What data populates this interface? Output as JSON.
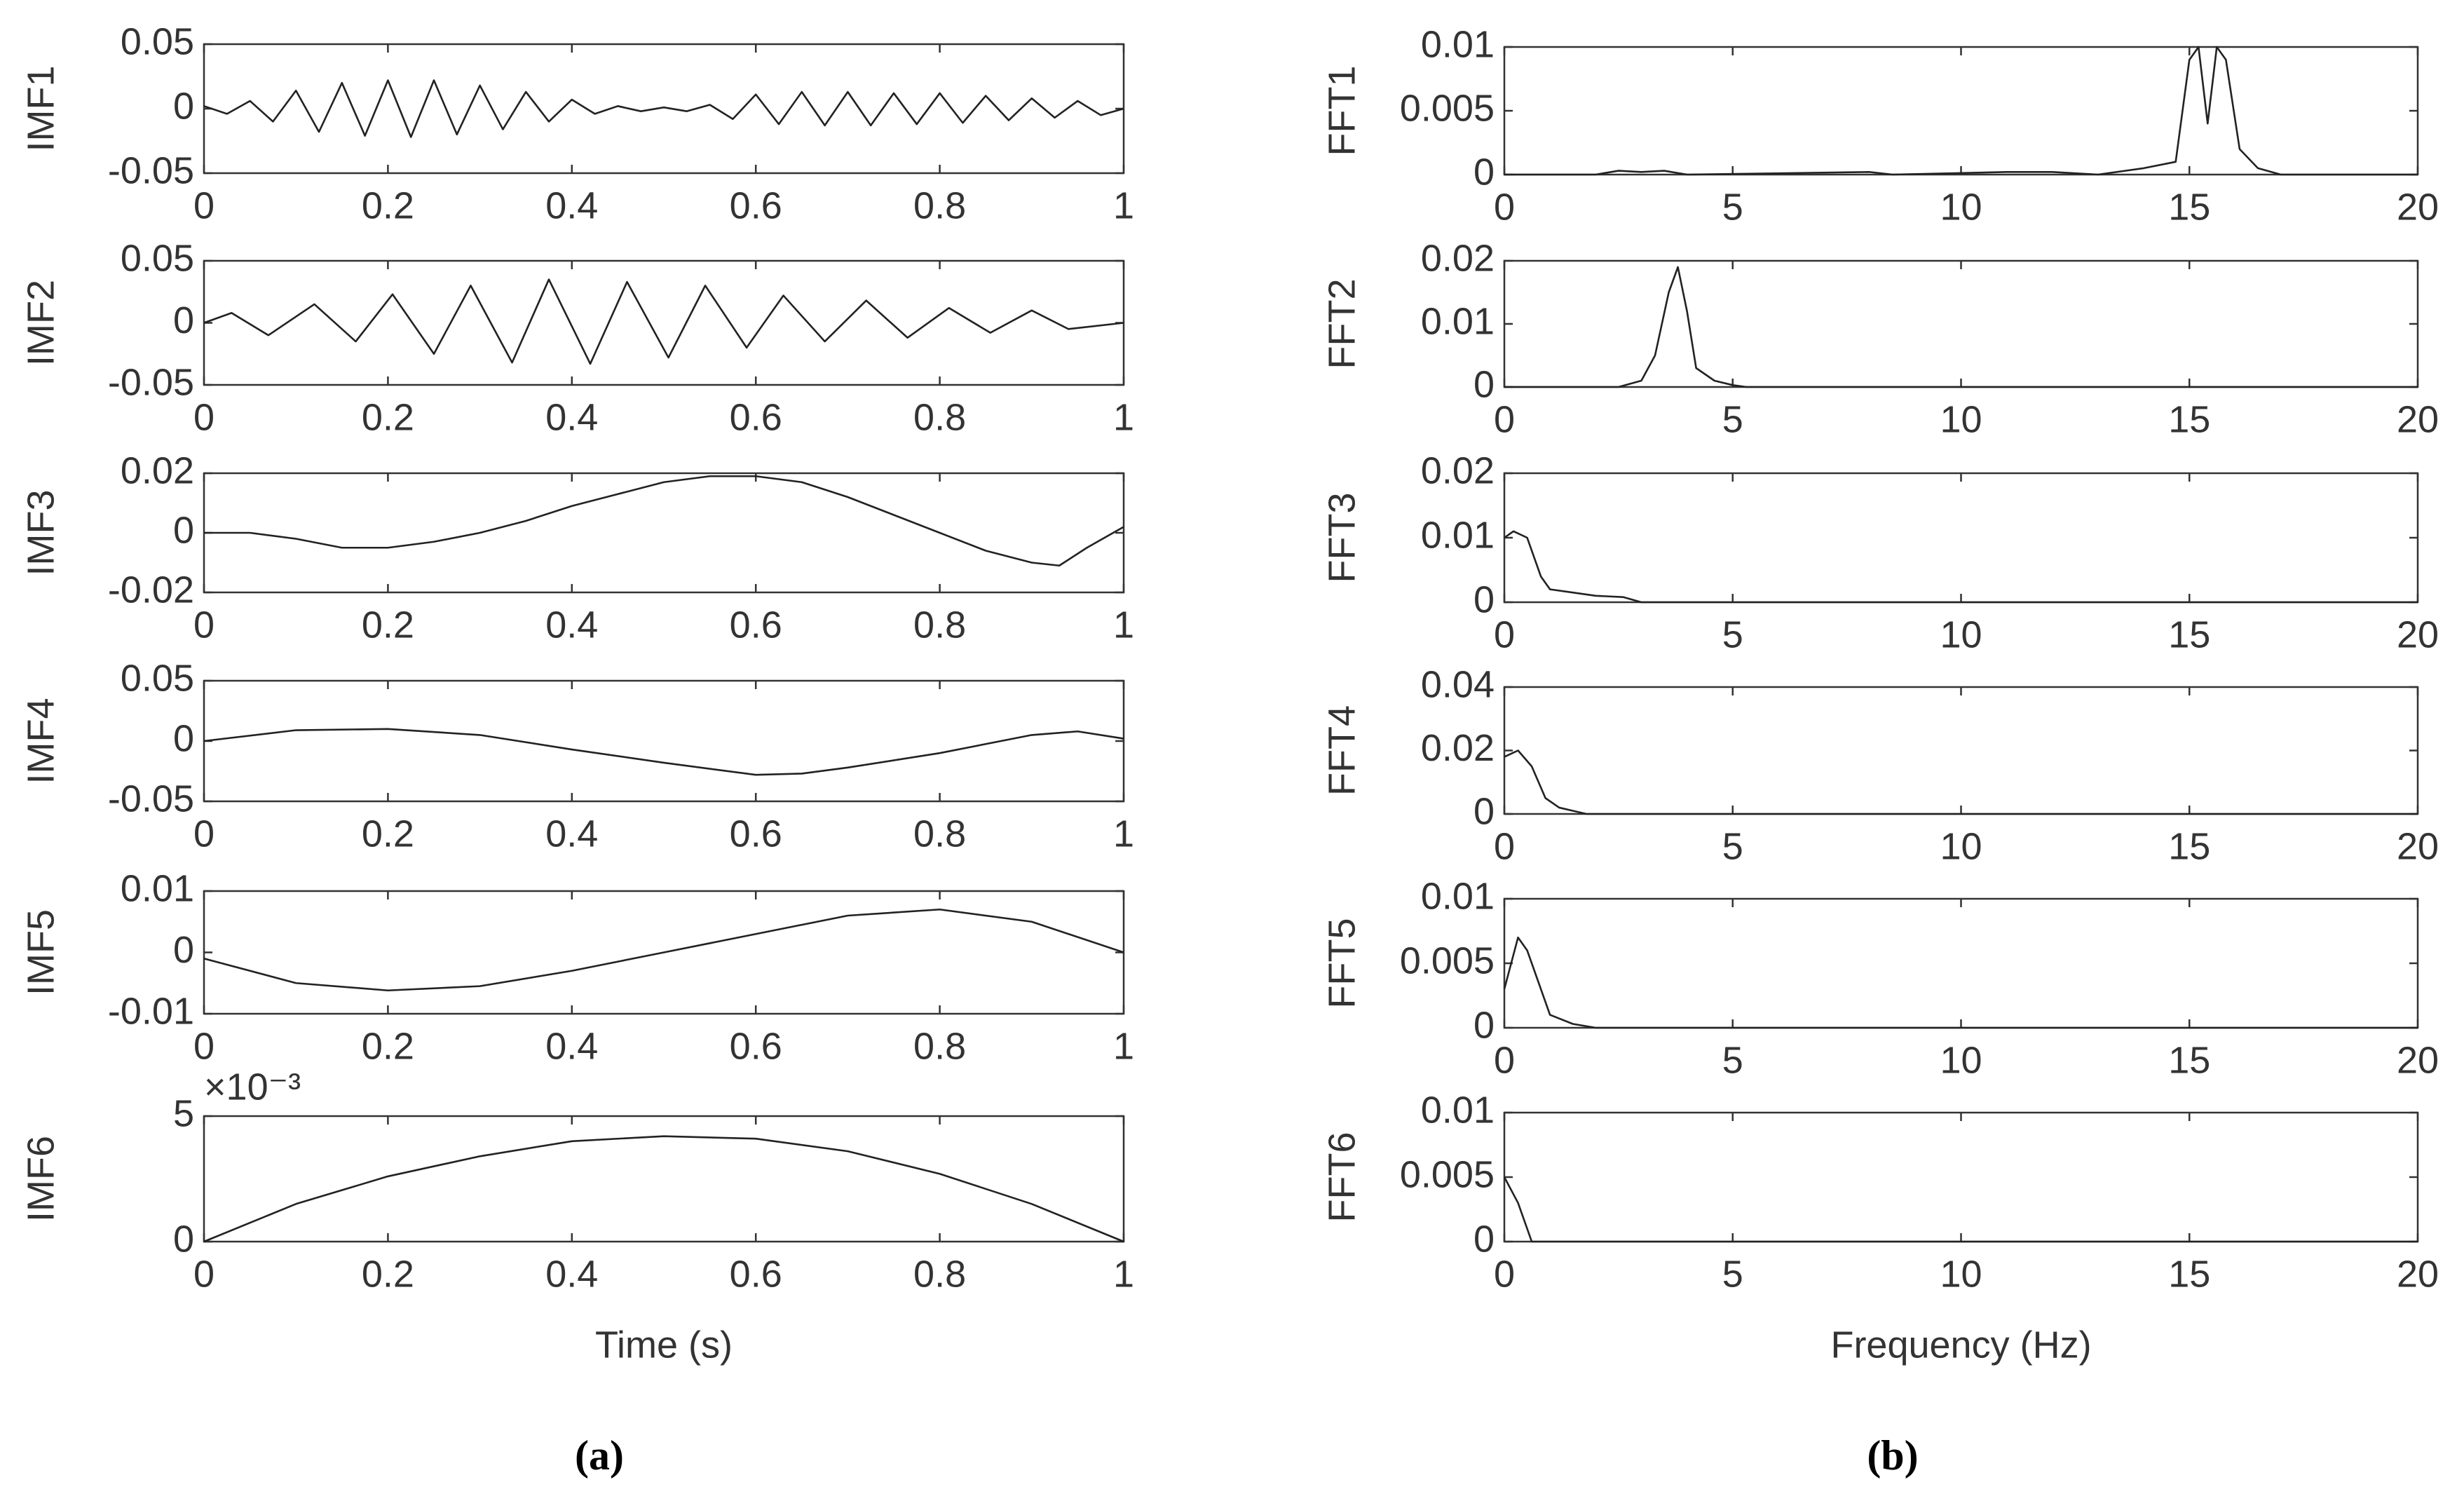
{
  "chart_data": [
    {
      "type": "line",
      "ylabel": "IMF1",
      "color": "#222222",
      "xlim": [
        0,
        1
      ],
      "ylim": [
        -0.05,
        0.05
      ],
      "xticks": [
        0,
        0.2,
        0.4,
        0.6,
        0.8,
        1
      ],
      "yticks": [
        -0.05,
        0,
        0.05
      ],
      "x": [
        0,
        0.025,
        0.05,
        0.075,
        0.1,
        0.125,
        0.15,
        0.175,
        0.2,
        0.225,
        0.25,
        0.275,
        0.3,
        0.325,
        0.35,
        0.375,
        0.4,
        0.425,
        0.45,
        0.475,
        0.5,
        0.525,
        0.55,
        0.575,
        0.6,
        0.625,
        0.65,
        0.675,
        0.7,
        0.725,
        0.75,
        0.775,
        0.8,
        0.825,
        0.85,
        0.875,
        0.9,
        0.925,
        0.95,
        0.975,
        1
      ],
      "values": [
        0.002,
        -0.004,
        0.006,
        -0.01,
        0.014,
        -0.018,
        0.02,
        -0.021,
        0.022,
        -0.022,
        0.022,
        -0.02,
        0.018,
        -0.016,
        0.013,
        -0.01,
        0.007,
        -0.004,
        0.002,
        -0.002,
        0.001,
        -0.002,
        0.003,
        -0.008,
        0.011,
        -0.012,
        0.013,
        -0.013,
        0.013,
        -0.013,
        0.012,
        -0.012,
        0.012,
        -0.011,
        0.01,
        -0.009,
        0.008,
        -0.007,
        0.006,
        -0.005,
        0
      ]
    },
    {
      "type": "line",
      "ylabel": "IMF2",
      "color": "#222222",
      "xlim": [
        0,
        1
      ],
      "ylim": [
        -0.05,
        0.05
      ],
      "xticks": [
        0,
        0.2,
        0.4,
        0.6,
        0.8,
        1
      ],
      "yticks": [
        -0.05,
        0,
        0.05
      ],
      "x": [
        0,
        0.03,
        0.07,
        0.12,
        0.165,
        0.205,
        0.25,
        0.29,
        0.335,
        0.375,
        0.42,
        0.46,
        0.505,
        0.545,
        0.59,
        0.63,
        0.675,
        0.72,
        0.765,
        0.81,
        0.855,
        0.9,
        0.94,
        1
      ],
      "values": [
        0,
        0.008,
        -0.01,
        0.015,
        -0.015,
        0.023,
        -0.025,
        0.03,
        -0.032,
        0.035,
        -0.033,
        0.033,
        -0.028,
        0.03,
        -0.02,
        0.022,
        -0.015,
        0.018,
        -0.012,
        0.012,
        -0.008,
        0.01,
        -0.005,
        0
      ]
    },
    {
      "type": "line",
      "ylabel": "IMF3",
      "color": "#222222",
      "xlim": [
        0,
        1
      ],
      "ylim": [
        -0.02,
        0.02
      ],
      "xticks": [
        0,
        0.2,
        0.4,
        0.6,
        0.8,
        1
      ],
      "yticks": [
        -0.02,
        0,
        0.02
      ],
      "x": [
        0,
        0.05,
        0.1,
        0.15,
        0.2,
        0.25,
        0.3,
        0.35,
        0.4,
        0.45,
        0.5,
        0.55,
        0.6,
        0.65,
        0.7,
        0.75,
        0.8,
        0.85,
        0.9,
        0.93,
        0.96,
        1
      ],
      "values": [
        0,
        0,
        -0.002,
        -0.005,
        -0.005,
        -0.003,
        0,
        0.004,
        0.009,
        0.013,
        0.017,
        0.019,
        0.019,
        0.017,
        0.012,
        0.006,
        0,
        -0.006,
        -0.01,
        -0.011,
        -0.005,
        0.002
      ]
    },
    {
      "type": "line",
      "ylabel": "IMF4",
      "color": "#222222",
      "xlim": [
        0,
        1
      ],
      "ylim": [
        -0.05,
        0.05
      ],
      "xticks": [
        0,
        0.2,
        0.4,
        0.6,
        0.8,
        1
      ],
      "yticks": [
        -0.05,
        0,
        0.05
      ],
      "x": [
        0,
        0.1,
        0.2,
        0.3,
        0.4,
        0.5,
        0.6,
        0.65,
        0.7,
        0.8,
        0.9,
        0.95,
        1
      ],
      "values": [
        0,
        0.009,
        0.01,
        0.005,
        -0.007,
        -0.018,
        -0.028,
        -0.027,
        -0.022,
        -0.01,
        0.005,
        0.008,
        0.002
      ]
    },
    {
      "type": "line",
      "ylabel": "IMF5",
      "color": "#222222",
      "xlim": [
        0,
        1
      ],
      "ylim": [
        -0.01,
        0.01
      ],
      "xticks": [
        0,
        0.2,
        0.4,
        0.6,
        0.8,
        1
      ],
      "yticks": [
        -0.01,
        0,
        0.01
      ],
      "x": [
        0,
        0.1,
        0.2,
        0.3,
        0.4,
        0.5,
        0.6,
        0.7,
        0.8,
        0.9,
        1
      ],
      "values": [
        -0.001,
        -0.005,
        -0.0062,
        -0.0055,
        -0.003,
        0,
        0.003,
        0.006,
        0.007,
        0.005,
        0
      ]
    },
    {
      "type": "line",
      "ylabel": "IMF6",
      "xlabel": "Time (s)",
      "exponent_label": "×10⁻³",
      "color": "#222222",
      "xlim": [
        0,
        1
      ],
      "ylim": [
        0,
        0.005
      ],
      "xticks": [
        0,
        0.2,
        0.4,
        0.6,
        0.8,
        1
      ],
      "yticks": [
        0,
        {
          "value": 0.005,
          "label": "5"
        }
      ],
      "x": [
        0,
        0.1,
        0.2,
        0.3,
        0.4,
        0.5,
        0.6,
        0.7,
        0.8,
        0.9,
        1
      ],
      "values": [
        0,
        0.0015,
        0.0026,
        0.0034,
        0.004,
        0.0042,
        0.0041,
        0.0036,
        0.0027,
        0.0015,
        0
      ]
    },
    {
      "type": "line",
      "ylabel": "FFT1",
      "color": "#222222",
      "xlim": [
        0,
        20
      ],
      "ylim": [
        0,
        0.01
      ],
      "xticks": [
        0,
        5,
        10,
        15,
        20
      ],
      "yticks": [
        0,
        0.005,
        0.01
      ],
      "x": [
        0,
        2,
        2.5,
        3,
        3.5,
        4,
        8,
        8.5,
        11,
        12,
        13,
        14,
        14.7,
        15,
        15.2,
        15.4,
        15.6,
        15.8,
        16.1,
        16.5,
        17,
        20
      ],
      "values": [
        0,
        0,
        0.0003,
        0.0002,
        0.0003,
        0,
        0.0002,
        0,
        0.0002,
        0.0002,
        0,
        0.0005,
        0.001,
        0.009,
        0.01,
        0.004,
        0.01,
        0.009,
        0.002,
        0.0005,
        0,
        0
      ]
    },
    {
      "type": "line",
      "ylabel": "FFT2",
      "color": "#222222",
      "xlim": [
        0,
        20
      ],
      "ylim": [
        0,
        0.02
      ],
      "xticks": [
        0,
        5,
        10,
        15,
        20
      ],
      "yticks": [
        0,
        0.01,
        0.02
      ],
      "x": [
        0,
        2.5,
        3,
        3.3,
        3.6,
        3.8,
        4,
        4.2,
        4.6,
        5,
        5.3,
        20
      ],
      "values": [
        0,
        0,
        0.001,
        0.005,
        0.015,
        0.019,
        0.012,
        0.003,
        0.001,
        0.0003,
        0,
        0
      ]
    },
    {
      "type": "line",
      "ylabel": "FFT3",
      "color": "#222222",
      "xlim": [
        0,
        20
      ],
      "ylim": [
        0,
        0.02
      ],
      "xticks": [
        0,
        5,
        10,
        15,
        20
      ],
      "yticks": [
        0,
        0.01,
        0.02
      ],
      "x": [
        0,
        0.2,
        0.5,
        0.8,
        1,
        1.5,
        2,
        2.6,
        3,
        20
      ],
      "values": [
        0.01,
        0.011,
        0.01,
        0.004,
        0.002,
        0.0015,
        0.001,
        0.0008,
        0,
        0
      ]
    },
    {
      "type": "line",
      "ylabel": "FFT4",
      "color": "#222222",
      "xlim": [
        0,
        20
      ],
      "ylim": [
        0,
        0.04
      ],
      "xticks": [
        0,
        5,
        10,
        15,
        20
      ],
      "yticks": [
        0,
        0.02,
        0.04
      ],
      "x": [
        0,
        0.3,
        0.6,
        0.9,
        1.2,
        1.5,
        1.8,
        20
      ],
      "values": [
        0.018,
        0.02,
        0.015,
        0.005,
        0.002,
        0.001,
        0,
        0
      ]
    },
    {
      "type": "line",
      "ylabel": "FFT5",
      "color": "#222222",
      "xlim": [
        0,
        20
      ],
      "ylim": [
        0,
        0.01
      ],
      "xticks": [
        0,
        5,
        10,
        15,
        20
      ],
      "yticks": [
        0,
        0.005,
        0.01
      ],
      "x": [
        0,
        0.3,
        0.5,
        0.8,
        1,
        1.5,
        2,
        20
      ],
      "values": [
        0.003,
        0.007,
        0.006,
        0.003,
        0.001,
        0.0003,
        0,
        0
      ]
    },
    {
      "type": "line",
      "ylabel": "FFT6",
      "xlabel": "Frequency (Hz)",
      "color": "#222222",
      "xlim": [
        0,
        20
      ],
      "ylim": [
        0,
        0.01
      ],
      "xticks": [
        0,
        5,
        10,
        15,
        20
      ],
      "yticks": [
        0,
        0.005,
        0.01
      ],
      "x": [
        0,
        0.3,
        0.6,
        20
      ],
      "values": [
        0.005,
        0.003,
        0,
        0
      ]
    }
  ],
  "captions": [
    "(a)",
    "(b)"
  ]
}
